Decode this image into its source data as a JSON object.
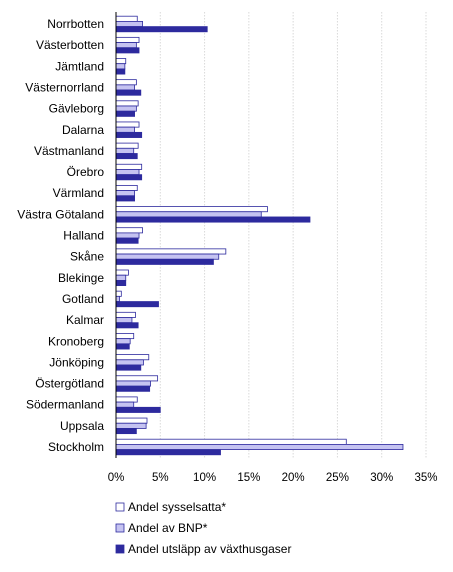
{
  "chart_data": {
    "type": "bar",
    "orientation": "horizontal",
    "categories": [
      "Norrbotten",
      "Västerbotten",
      "Jämtland",
      "Västernorrland",
      "Gävleborg",
      "Dalarna",
      "Västmanland",
      "Örebro",
      "Värmland",
      "Västra Götaland",
      "Halland",
      "Skåne",
      "Blekinge",
      "Gotland",
      "Kalmar",
      "Kronoberg",
      "Jönköping",
      "Östergötland",
      "Södermanland",
      "Uppsala",
      "Stockholm"
    ],
    "series": [
      {
        "name": "Andel sysselsatta*",
        "color": "#ffffff",
        "stroke": "#2d2a9e",
        "values": [
          2.4,
          2.6,
          1.1,
          2.3,
          2.5,
          2.6,
          2.5,
          2.9,
          2.4,
          17.1,
          3.0,
          12.4,
          1.4,
          0.6,
          2.2,
          2.0,
          3.7,
          4.7,
          2.4,
          3.5,
          26.0
        ]
      },
      {
        "name": "Andel av BNP*",
        "color": "#c5c3f1",
        "stroke": "#2d2a9e",
        "values": [
          3.0,
          2.3,
          1.0,
          2.1,
          2.3,
          2.1,
          2.0,
          2.6,
          2.1,
          16.4,
          2.6,
          11.6,
          1.1,
          0.4,
          1.8,
          1.6,
          3.1,
          3.9,
          2.0,
          3.4,
          32.4
        ]
      },
      {
        "name": "Andel utsläpp av växthusgaser",
        "color": "#2d2a9e",
        "stroke": "#2d2a9e",
        "values": [
          10.3,
          2.6,
          1.0,
          2.8,
          2.1,
          2.9,
          2.4,
          2.9,
          2.1,
          21.9,
          2.5,
          11.0,
          1.1,
          4.8,
          2.5,
          1.5,
          2.8,
          3.8,
          5.0,
          2.3,
          11.8
        ]
      }
    ],
    "xlim": [
      0,
      35
    ],
    "xticks": [
      0,
      5,
      10,
      15,
      20,
      25,
      30,
      35
    ],
    "xtick_labels": [
      "0%",
      "5%",
      "10%",
      "15%",
      "20%",
      "25%",
      "30%",
      "35%"
    ],
    "grid": "vertical",
    "legend": "bottom"
  }
}
